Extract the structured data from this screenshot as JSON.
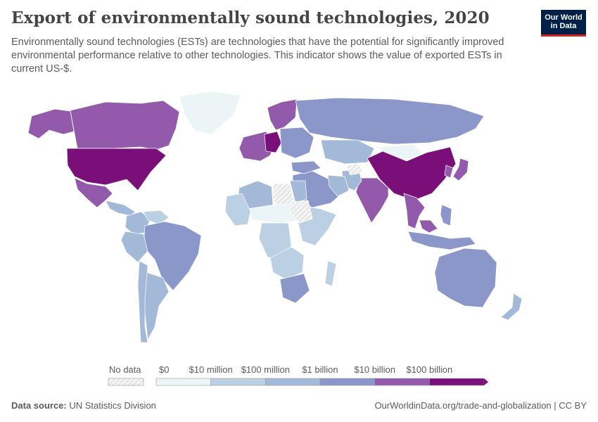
{
  "header": {
    "title": "Export of environmentally sound technologies, 2020",
    "subtitle": "Environmentally sound technologies (ESTs) are technologies that have the potential for significantly improved environmental performance relative to other technologies. This indicator shows the value of exported ESTs in current US-$."
  },
  "logo": {
    "line1": "Our World",
    "line2": "in Data",
    "bg": "#002147",
    "accent": "#ce261e"
  },
  "legend": {
    "no_data_label": "No data",
    "bins": [
      {
        "label": "$0",
        "color": "#ebf5f8"
      },
      {
        "label": "$10 million",
        "color": "#bcd0e3"
      },
      {
        "label": "$100 million",
        "color": "#a3b9d8"
      },
      {
        "label": "$1 billion",
        "color": "#8b97c9"
      },
      {
        "label": "$10 billion",
        "color": "#9359ab"
      },
      {
        "label": "$100 billion",
        "color": "#7b0f7a"
      }
    ]
  },
  "map_regions": [
    {
      "name": "Greenland",
      "level": 0
    },
    {
      "name": "Alaska",
      "level": 4
    },
    {
      "name": "Canada",
      "level": 4
    },
    {
      "name": "United States",
      "level": 5
    },
    {
      "name": "Mexico",
      "level": 4
    },
    {
      "name": "Central America",
      "level": 2
    },
    {
      "name": "Colombia",
      "level": 2
    },
    {
      "name": "Venezuela",
      "level": 1
    },
    {
      "name": "Brazil",
      "level": 3
    },
    {
      "name": "Peru",
      "level": 2
    },
    {
      "name": "Argentina",
      "level": 2
    },
    {
      "name": "Chile",
      "level": 2
    },
    {
      "name": "Western Europe",
      "level": 4
    },
    {
      "name": "Germany",
      "level": 5
    },
    {
      "name": "Scandinavia",
      "level": 4
    },
    {
      "name": "Eastern Europe",
      "level": 3
    },
    {
      "name": "Russia",
      "level": 3
    },
    {
      "name": "Kazakhstan",
      "level": 2
    },
    {
      "name": "Mongolia",
      "level": 0
    },
    {
      "name": "China",
      "level": 5
    },
    {
      "name": "Japan",
      "level": 4
    },
    {
      "name": "South Korea",
      "level": 4
    },
    {
      "name": "India",
      "level": 4
    },
    {
      "name": "Pakistan",
      "level": 2
    },
    {
      "name": "Middle East",
      "level": 3
    },
    {
      "name": "Southeast Asia",
      "level": 4
    },
    {
      "name": "Indonesia",
      "level": 3
    },
    {
      "name": "Malaysia",
      "level": 4
    },
    {
      "name": "Philippines",
      "level": 3
    },
    {
      "name": "Australia",
      "level": 3
    },
    {
      "name": "New Zealand",
      "level": 2
    },
    {
      "name": "Algeria",
      "level": 2
    },
    {
      "name": "Libya",
      "level": -1
    },
    {
      "name": "Egypt",
      "level": 2
    },
    {
      "name": "Sahel",
      "level": 0
    },
    {
      "name": "West Africa",
      "level": 1
    },
    {
      "name": "Central Africa",
      "level": 1
    },
    {
      "name": "East Africa",
      "level": 1
    },
    {
      "name": "Southern Africa",
      "level": 1
    },
    {
      "name": "South Africa",
      "level": 3
    },
    {
      "name": "Madagascar",
      "level": 1
    },
    {
      "name": "Sudan",
      "level": -1
    },
    {
      "name": "Iran",
      "level": 2
    },
    {
      "name": "Afghanistan",
      "level": -1
    },
    {
      "name": "Turkey",
      "level": 3
    }
  ],
  "footer": {
    "source_label": "Data source:",
    "source": "UN Statistics Division",
    "url": "OurWorldinData.org/trade-and-globalization | CC BY"
  }
}
